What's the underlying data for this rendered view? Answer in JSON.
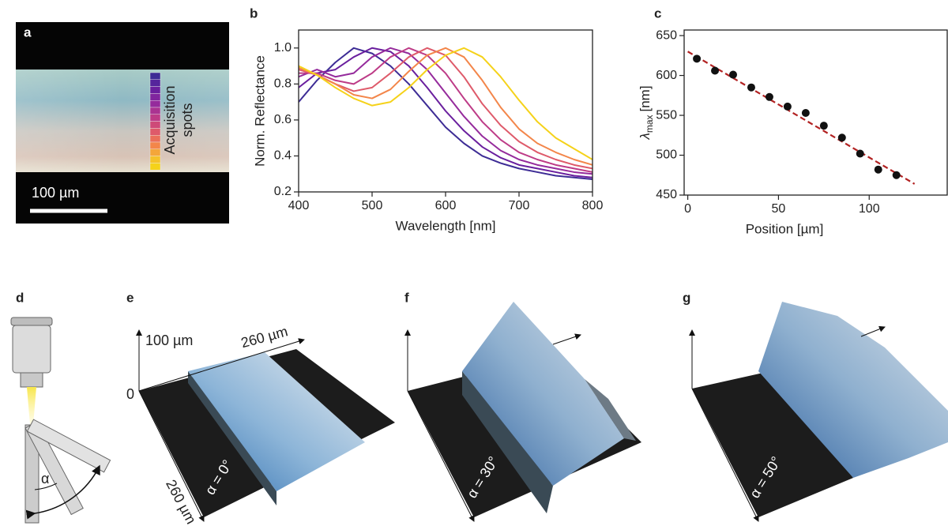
{
  "panels": {
    "labels": [
      "a",
      "b",
      "c",
      "d",
      "e",
      "f",
      "g"
    ]
  },
  "panel_a": {
    "scale_bar": "100 µm",
    "spots_label": [
      "Acquisition",
      "spots"
    ]
  },
  "panel_d": {
    "angle": "α"
  },
  "panel_e": {
    "z_label": "100 µm",
    "z_zero": "0",
    "y_label": "260 µm",
    "x_label": "260 µm",
    "angle_label": "α = 0°"
  },
  "panel_f": {
    "angle_label": "α = 30°"
  },
  "panel_g": {
    "angle_label": "α = 50°"
  },
  "chart_data": [
    {
      "type": "line",
      "xlabel": "Wavelength [nm]",
      "ylabel": "Norm. Reflectance",
      "x": [
        400,
        425,
        450,
        475,
        500,
        525,
        550,
        575,
        600,
        625,
        650,
        675,
        700,
        725,
        750,
        775,
        800
      ],
      "xlim": [
        400,
        800
      ],
      "xticks": [
        400,
        500,
        600,
        700,
        800
      ],
      "ylim": [
        0.2,
        1.1
      ],
      "yticks": [
        0.2,
        0.4,
        0.6,
        0.8,
        {
          "value": 1,
          "label": "1.0"
        }
      ],
      "series": [
        {
          "color": "#3d2c95",
          "values": [
            0.7,
            0.82,
            0.92,
            1.0,
            0.97,
            0.9,
            0.8,
            0.68,
            0.56,
            0.47,
            0.4,
            0.36,
            0.33,
            0.31,
            0.29,
            0.28,
            0.27
          ]
        },
        {
          "color": "#6a1f9e",
          "values": [
            0.78,
            0.86,
            0.88,
            0.95,
            1.0,
            0.98,
            0.9,
            0.78,
            0.65,
            0.54,
            0.45,
            0.39,
            0.35,
            0.33,
            0.31,
            0.29,
            0.28
          ]
        },
        {
          "color": "#952b9c",
          "values": [
            0.84,
            0.88,
            0.84,
            0.86,
            0.95,
            1.0,
            0.97,
            0.88,
            0.75,
            0.62,
            0.51,
            0.43,
            0.38,
            0.35,
            0.33,
            0.31,
            0.3
          ]
        },
        {
          "color": "#bd3b87",
          "values": [
            0.86,
            0.86,
            0.82,
            0.8,
            0.86,
            0.95,
            1.0,
            0.96,
            0.86,
            0.72,
            0.59,
            0.49,
            0.42,
            0.38,
            0.35,
            0.33,
            0.31
          ]
        },
        {
          "color": "#de5a6a",
          "values": [
            0.88,
            0.85,
            0.8,
            0.76,
            0.78,
            0.86,
            0.95,
            1.0,
            0.96,
            0.84,
            0.69,
            0.57,
            0.48,
            0.42,
            0.38,
            0.35,
            0.33
          ]
        },
        {
          "color": "#f3864a",
          "values": [
            0.89,
            0.85,
            0.8,
            0.74,
            0.72,
            0.77,
            0.87,
            0.96,
            1.0,
            0.95,
            0.82,
            0.67,
            0.55,
            0.47,
            0.42,
            0.38,
            0.35
          ]
        },
        {
          "color": "#f5d21a",
          "values": [
            0.9,
            0.85,
            0.78,
            0.72,
            0.68,
            0.7,
            0.78,
            0.88,
            0.96,
            1.0,
            0.95,
            0.84,
            0.71,
            0.59,
            0.5,
            0.44,
            0.38
          ]
        }
      ]
    },
    {
      "type": "scatter",
      "xlabel": "Position [µm]",
      "ylabel": {
        "symbol": "λ",
        "subscript": "max",
        "unit": "[nm]"
      },
      "xlim": [
        -2,
        143
      ],
      "xticks": [
        0,
        50,
        100
      ],
      "ylim": [
        450,
        657
      ],
      "yticks": [
        450,
        500,
        550,
        600,
        650
      ],
      "series": [
        {
          "color": "#b22222",
          "style": "dashed",
          "x": [
            0,
            125
          ],
          "values": [
            630,
            464
          ]
        },
        {
          "color": "#111111",
          "style": "points",
          "x": [
            5,
            15,
            25,
            35,
            45,
            55,
            65,
            75,
            85,
            95,
            105,
            115
          ],
          "values": [
            621,
            606,
            601,
            585,
            573,
            561,
            553,
            537,
            522,
            502,
            482,
            475
          ]
        }
      ]
    }
  ]
}
